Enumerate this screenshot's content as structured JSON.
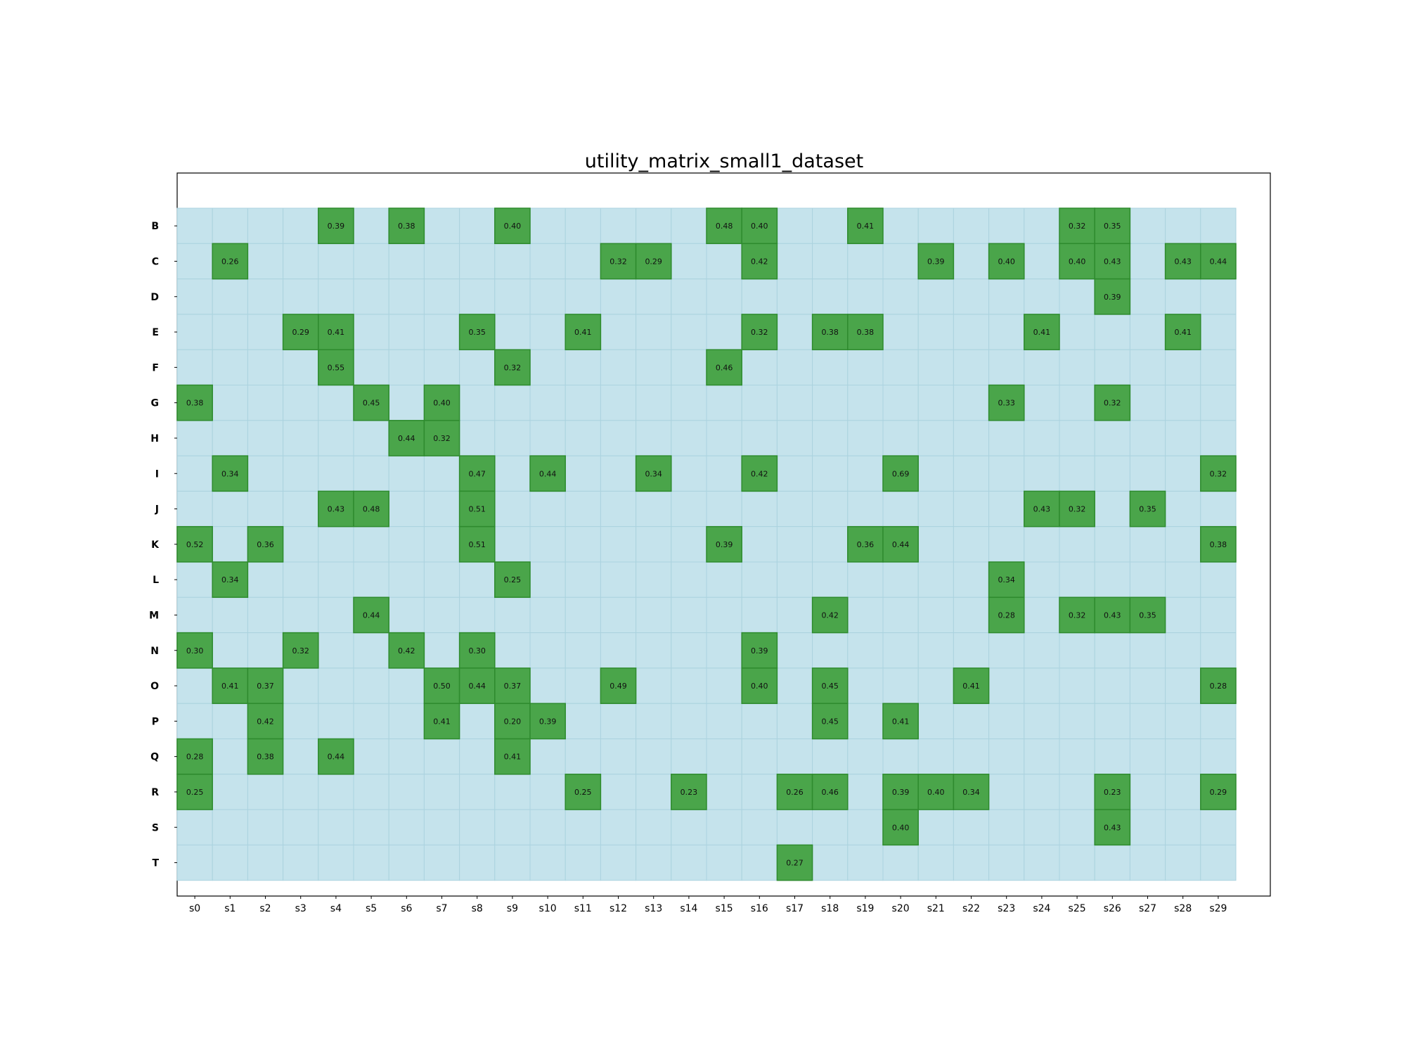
{
  "chart_data": {
    "type": "heatmap",
    "title": "utility_matrix_small1_dataset",
    "xlabel": "",
    "ylabel": "",
    "x_categories": [
      "s0",
      "s1",
      "s2",
      "s3",
      "s4",
      "s5",
      "s6",
      "s7",
      "s8",
      "s9",
      "s10",
      "s11",
      "s12",
      "s13",
      "s14",
      "s15",
      "s16",
      "s17",
      "s18",
      "s19",
      "s20",
      "s21",
      "s22",
      "s23",
      "s24",
      "s25",
      "s26",
      "s27",
      "s28",
      "s29"
    ],
    "y_categories": [
      "B",
      "C",
      "D",
      "E",
      "F",
      "G",
      "H",
      "I",
      "J",
      "K",
      "L",
      "M",
      "N",
      "O",
      "P",
      "Q",
      "R",
      "S",
      "T"
    ],
    "colors": {
      "empty": "#c5e3ec",
      "filled": "#4aa54a",
      "filled_border": "#2e8b2e",
      "grid": "#abd3df"
    },
    "grid": true,
    "cells": [
      {
        "row": "B",
        "col": "s4",
        "value": "0.39"
      },
      {
        "row": "B",
        "col": "s6",
        "value": "0.38"
      },
      {
        "row": "B",
        "col": "s9",
        "value": "0.40"
      },
      {
        "row": "B",
        "col": "s15",
        "value": "0.48"
      },
      {
        "row": "B",
        "col": "s16",
        "value": "0.40"
      },
      {
        "row": "B",
        "col": "s19",
        "value": "0.41"
      },
      {
        "row": "B",
        "col": "s25",
        "value": "0.32"
      },
      {
        "row": "B",
        "col": "s26",
        "value": "0.35"
      },
      {
        "row": "C",
        "col": "s1",
        "value": "0.26"
      },
      {
        "row": "C",
        "col": "s12",
        "value": "0.32"
      },
      {
        "row": "C",
        "col": "s13",
        "value": "0.29"
      },
      {
        "row": "C",
        "col": "s16",
        "value": "0.42"
      },
      {
        "row": "C",
        "col": "s21",
        "value": "0.39"
      },
      {
        "row": "C",
        "col": "s23",
        "value": "0.40"
      },
      {
        "row": "C",
        "col": "s25",
        "value": "0.40"
      },
      {
        "row": "C",
        "col": "s26",
        "value": "0.43"
      },
      {
        "row": "C",
        "col": "s28",
        "value": "0.43"
      },
      {
        "row": "C",
        "col": "s29",
        "value": "0.44"
      },
      {
        "row": "D",
        "col": "s26",
        "value": "0.39"
      },
      {
        "row": "E",
        "col": "s3",
        "value": "0.29"
      },
      {
        "row": "E",
        "col": "s4",
        "value": "0.41"
      },
      {
        "row": "E",
        "col": "s8",
        "value": "0.35"
      },
      {
        "row": "E",
        "col": "s11",
        "value": "0.41"
      },
      {
        "row": "E",
        "col": "s16",
        "value": "0.32"
      },
      {
        "row": "E",
        "col": "s18",
        "value": "0.38"
      },
      {
        "row": "E",
        "col": "s19",
        "value": "0.38"
      },
      {
        "row": "E",
        "col": "s24",
        "value": "0.41"
      },
      {
        "row": "E",
        "col": "s28",
        "value": "0.41"
      },
      {
        "row": "F",
        "col": "s4",
        "value": "0.55"
      },
      {
        "row": "F",
        "col": "s9",
        "value": "0.32"
      },
      {
        "row": "F",
        "col": "s15",
        "value": "0.46"
      },
      {
        "row": "G",
        "col": "s0",
        "value": "0.38"
      },
      {
        "row": "G",
        "col": "s5",
        "value": "0.45"
      },
      {
        "row": "G",
        "col": "s7",
        "value": "0.40"
      },
      {
        "row": "G",
        "col": "s23",
        "value": "0.33"
      },
      {
        "row": "G",
        "col": "s26",
        "value": "0.32"
      },
      {
        "row": "H",
        "col": "s6",
        "value": "0.44"
      },
      {
        "row": "H",
        "col": "s7",
        "value": "0.32"
      },
      {
        "row": "I",
        "col": "s1",
        "value": "0.34"
      },
      {
        "row": "I",
        "col": "s8",
        "value": "0.47"
      },
      {
        "row": "I",
        "col": "s10",
        "value": "0.44"
      },
      {
        "row": "I",
        "col": "s13",
        "value": "0.34"
      },
      {
        "row": "I",
        "col": "s16",
        "value": "0.42"
      },
      {
        "row": "I",
        "col": "s20",
        "value": "0.69"
      },
      {
        "row": "I",
        "col": "s29",
        "value": "0.32"
      },
      {
        "row": "J",
        "col": "s4",
        "value": "0.43"
      },
      {
        "row": "J",
        "col": "s5",
        "value": "0.48"
      },
      {
        "row": "J",
        "col": "s8",
        "value": "0.51"
      },
      {
        "row": "J",
        "col": "s24",
        "value": "0.43"
      },
      {
        "row": "J",
        "col": "s25",
        "value": "0.32"
      },
      {
        "row": "J",
        "col": "s27",
        "value": "0.35"
      },
      {
        "row": "K",
        "col": "s0",
        "value": "0.52"
      },
      {
        "row": "K",
        "col": "s2",
        "value": "0.36"
      },
      {
        "row": "K",
        "col": "s8",
        "value": "0.51"
      },
      {
        "row": "K",
        "col": "s15",
        "value": "0.39"
      },
      {
        "row": "K",
        "col": "s19",
        "value": "0.36"
      },
      {
        "row": "K",
        "col": "s20",
        "value": "0.44"
      },
      {
        "row": "K",
        "col": "s29",
        "value": "0.38"
      },
      {
        "row": "L",
        "col": "s1",
        "value": "0.34"
      },
      {
        "row": "L",
        "col": "s9",
        "value": "0.25"
      },
      {
        "row": "L",
        "col": "s23",
        "value": "0.34"
      },
      {
        "row": "M",
        "col": "s5",
        "value": "0.44"
      },
      {
        "row": "M",
        "col": "s18",
        "value": "0.42"
      },
      {
        "row": "M",
        "col": "s23",
        "value": "0.28"
      },
      {
        "row": "M",
        "col": "s25",
        "value": "0.32"
      },
      {
        "row": "M",
        "col": "s26",
        "value": "0.43"
      },
      {
        "row": "M",
        "col": "s27",
        "value": "0.35"
      },
      {
        "row": "N",
        "col": "s0",
        "value": "0.30"
      },
      {
        "row": "N",
        "col": "s3",
        "value": "0.32"
      },
      {
        "row": "N",
        "col": "s6",
        "value": "0.42"
      },
      {
        "row": "N",
        "col": "s8",
        "value": "0.30"
      },
      {
        "row": "N",
        "col": "s16",
        "value": "0.39"
      },
      {
        "row": "O",
        "col": "s1",
        "value": "0.41"
      },
      {
        "row": "O",
        "col": "s2",
        "value": "0.37"
      },
      {
        "row": "O",
        "col": "s7",
        "value": "0.50"
      },
      {
        "row": "O",
        "col": "s8",
        "value": "0.44"
      },
      {
        "row": "O",
        "col": "s9",
        "value": "0.37"
      },
      {
        "row": "O",
        "col": "s12",
        "value": "0.49"
      },
      {
        "row": "O",
        "col": "s16",
        "value": "0.40"
      },
      {
        "row": "O",
        "col": "s18",
        "value": "0.45"
      },
      {
        "row": "O",
        "col": "s22",
        "value": "0.41"
      },
      {
        "row": "O",
        "col": "s29",
        "value": "0.28"
      },
      {
        "row": "P",
        "col": "s2",
        "value": "0.42"
      },
      {
        "row": "P",
        "col": "s7",
        "value": "0.41"
      },
      {
        "row": "P",
        "col": "s9",
        "value": "0.20"
      },
      {
        "row": "P",
        "col": "s10",
        "value": "0.39"
      },
      {
        "row": "P",
        "col": "s18",
        "value": "0.45"
      },
      {
        "row": "P",
        "col": "s20",
        "value": "0.41"
      },
      {
        "row": "Q",
        "col": "s0",
        "value": "0.28"
      },
      {
        "row": "Q",
        "col": "s2",
        "value": "0.38"
      },
      {
        "row": "Q",
        "col": "s4",
        "value": "0.44"
      },
      {
        "row": "Q",
        "col": "s9",
        "value": "0.41"
      },
      {
        "row": "R",
        "col": "s0",
        "value": "0.25"
      },
      {
        "row": "R",
        "col": "s11",
        "value": "0.25"
      },
      {
        "row": "R",
        "col": "s14",
        "value": "0.23"
      },
      {
        "row": "R",
        "col": "s17",
        "value": "0.26"
      },
      {
        "row": "R",
        "col": "s18",
        "value": "0.46"
      },
      {
        "row": "R",
        "col": "s20",
        "value": "0.39"
      },
      {
        "row": "R",
        "col": "s21",
        "value": "0.40"
      },
      {
        "row": "R",
        "col": "s22",
        "value": "0.34"
      },
      {
        "row": "R",
        "col": "s26",
        "value": "0.23"
      },
      {
        "row": "R",
        "col": "s29",
        "value": "0.29"
      },
      {
        "row": "S",
        "col": "s20",
        "value": "0.40"
      },
      {
        "row": "S",
        "col": "s26",
        "value": "0.43"
      },
      {
        "row": "T",
        "col": "s17",
        "value": "0.27"
      }
    ]
  }
}
